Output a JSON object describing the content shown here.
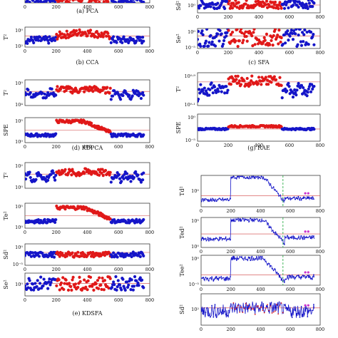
{
  "chart_data": [
    {
      "id": "pca-tail",
      "type": "scatter",
      "ylabel": "",
      "caption": "(a) PCA",
      "xlim": [
        0,
        800
      ],
      "xticks": [
        "0",
        "200",
        "400",
        "600",
        "800"
      ],
      "yscale": "log",
      "yticks": [],
      "threshold": null,
      "shape": "flat",
      "noise": 0.5,
      "xticks_visible": true
    },
    {
      "id": "cca-t2",
      "type": "scatter",
      "ylabel": "T²",
      "caption": "(b) CCA",
      "xlim": [
        0,
        800
      ],
      "xticks": [
        "0",
        "200",
        "400",
        "600",
        "800"
      ],
      "yscale": "log",
      "yticks": [
        "10⁰",
        "10²"
      ],
      "threshold": 0.55,
      "shape": "bump",
      "base": 0.35,
      "high": 0.75,
      "noise": 0.18,
      "xticks_visible": true
    },
    {
      "id": "sfa-sd2",
      "type": "scatter",
      "ylabel": "Sd²",
      "caption": "",
      "xlim": [
        0,
        800
      ],
      "xticks": [
        "0",
        "200",
        "400",
        "600",
        "800"
      ],
      "yscale": "log",
      "yticks": [
        "10⁰"
      ],
      "threshold": 0.55,
      "shape": "flat",
      "base": 0.6,
      "noise": 0.3,
      "xticks_visible": true
    },
    {
      "id": "sfa-se2",
      "type": "scatter",
      "ylabel": "Se²",
      "caption": "(c) SFA",
      "xlim": [
        0,
        800
      ],
      "xticks": [
        "0",
        "200",
        "400",
        "600",
        "800"
      ],
      "yscale": "log",
      "yticks": [
        "10⁰",
        "10⁻⁵"
      ],
      "threshold": 0.62,
      "shape": "noisy",
      "base": 0.55,
      "noise": 0.45,
      "xticks_visible": true
    },
    {
      "id": "kdpca-t2",
      "type": "scatter",
      "ylabel": "T²",
      "caption": "",
      "xlim": [
        0,
        800
      ],
      "xticks": [
        "0",
        "200",
        "400",
        "600",
        "800"
      ],
      "yscale": "log",
      "yticks": [
        "10⁰",
        "10⁴"
      ],
      "threshold": 0.55,
      "shape": "plateau-wave",
      "base": 0.45,
      "high": 0.62,
      "noise": 0.12,
      "xticks_visible": false
    },
    {
      "id": "kdpca-spe",
      "type": "scatter",
      "ylabel": "SPE",
      "caption": "(d) KDPCA",
      "xlim": [
        0,
        800
      ],
      "xticks": [
        "0",
        "200",
        "400",
        "600",
        "800"
      ],
      "yscale": "log",
      "yticks": [
        "10⁵",
        "10⁰"
      ],
      "threshold": 0.5,
      "shape": "step",
      "base": 0.3,
      "high": 0.85,
      "noise": 0.06,
      "xticks_visible": true
    },
    {
      "id": "rae-t2",
      "type": "scatter",
      "ylabel": "T²",
      "caption": "",
      "xlim": [
        0,
        800
      ],
      "xticks": [
        "0",
        "200",
        "400",
        "600",
        "800"
      ],
      "yscale": "log",
      "yticks": [
        "10⁰·⁹",
        "10⁰·¹"
      ],
      "threshold": 0.72,
      "shape": "dip-high",
      "base": 0.3,
      "high": 0.8,
      "noise": 0.15,
      "xticks_visible": false
    },
    {
      "id": "rae-spe",
      "type": "scatter",
      "ylabel": "SPE",
      "caption": "(g) RAE",
      "xlim": [
        0,
        800
      ],
      "xticks": [
        "0",
        "200",
        "400",
        "600",
        "800"
      ],
      "yscale": "log",
      "yticks": [
        "10⁰",
        "10⁻⁵"
      ],
      "threshold": 0.45,
      "shape": "flat-bump",
      "base": 0.45,
      "high": 0.55,
      "noise": 0.03,
      "xticks_visible": true
    },
    {
      "id": "kdsfa-t2",
      "type": "scatter",
      "ylabel": "T²",
      "caption": "",
      "xlim": [
        0,
        800
      ],
      "xticks": [
        "0",
        "200",
        "400",
        "600",
        "800"
      ],
      "yscale": "log",
      "yticks": [
        "10²",
        "10⁰"
      ],
      "threshold": 0.55,
      "shape": "plateau-wave",
      "base": 0.45,
      "high": 0.62,
      "noise": 0.14,
      "xticks_visible": false
    },
    {
      "id": "kdsfa-te2",
      "type": "scatter",
      "ylabel": "Te²",
      "caption": "",
      "xlim": [
        0,
        800
      ],
      "xticks": [
        "0",
        "200",
        "400",
        "600",
        "800"
      ],
      "yscale": "log",
      "yticks": [
        "10⁵",
        "10⁰"
      ],
      "threshold": 0.5,
      "shape": "step",
      "base": 0.28,
      "high": 0.82,
      "noise": 0.07,
      "xticks_visible": true
    },
    {
      "id": "kdsfa-sd2",
      "type": "scatter",
      "ylabel": "Sd²",
      "caption": "",
      "xlim": [
        0,
        800
      ],
      "xticks": [
        "0",
        "200",
        "400",
        "600",
        "800"
      ],
      "yscale": "log",
      "yticks": [
        "10⁰",
        "10⁻⁵"
      ],
      "threshold": 0.6,
      "shape": "flat",
      "base": 0.5,
      "noise": 0.12,
      "xticks_visible": true
    },
    {
      "id": "kdsfa-se2",
      "type": "scatter",
      "ylabel": "Se²",
      "caption": "(e) KDSFA",
      "xlim": [
        0,
        800
      ],
      "xticks": [
        "0",
        "200",
        "400",
        "600",
        "800"
      ],
      "yscale": "log",
      "yticks": [
        "10⁰"
      ],
      "threshold": 0.55,
      "shape": "flat",
      "base": 0.55,
      "noise": 0.3,
      "xticks_visible": true
    },
    {
      "id": "right-td2",
      "type": "line",
      "ylabel": "Td²",
      "caption": "",
      "xlim": [
        0,
        800
      ],
      "xticks": [
        "0",
        "200",
        "400",
        "600",
        "800"
      ],
      "yscale": "log",
      "yticks": [
        "10⁰"
      ],
      "threshold": 0.35,
      "shape": "decay",
      "base": 0.22,
      "high": 0.95,
      "noise": 0.06,
      "vline": 550,
      "xticks_visible": true
    },
    {
      "id": "right-ted2",
      "type": "line",
      "ylabel": "Ted²",
      "caption": "",
      "xlim": [
        0,
        800
      ],
      "xticks": [
        "0",
        "200",
        "400",
        "600",
        "800"
      ],
      "yscale": "log",
      "yticks": [
        "10⁵",
        "10⁰"
      ],
      "threshold": 0.45,
      "shape": "decay",
      "base": 0.28,
      "high": 0.92,
      "noise": 0.07,
      "vline": 550,
      "xticks_visible": true
    },
    {
      "id": "right-tee2",
      "type": "line",
      "ylabel": "Tee²",
      "caption": "",
      "xlim": [
        0,
        800
      ],
      "xticks": [
        "0",
        "200",
        "400",
        "600",
        "800"
      ],
      "yscale": "log",
      "yticks": [
        "10⁰",
        "10⁻⁵"
      ],
      "threshold": 0.35,
      "shape": "decay",
      "base": 0.22,
      "high": 0.9,
      "noise": 0.08,
      "vline": 550,
      "xticks_visible": true
    },
    {
      "id": "right-sd2",
      "type": "line",
      "ylabel": "Sd²",
      "caption": "",
      "xlim": [
        0,
        800
      ],
      "xticks": [
        "0",
        "200",
        "400",
        "600",
        "800"
      ],
      "yscale": "log",
      "yticks": [
        "10²"
      ],
      "threshold": 0.55,
      "shape": "noisy-mid",
      "base": 0.45,
      "high": 0.55,
      "noise": 0.22,
      "xticks_visible": true
    }
  ],
  "colors": {
    "normal": "#1515c8",
    "fault": "#e01818",
    "threshold": "#d04040",
    "marker": "#cc33cc",
    "vline": "#2fb04a"
  }
}
